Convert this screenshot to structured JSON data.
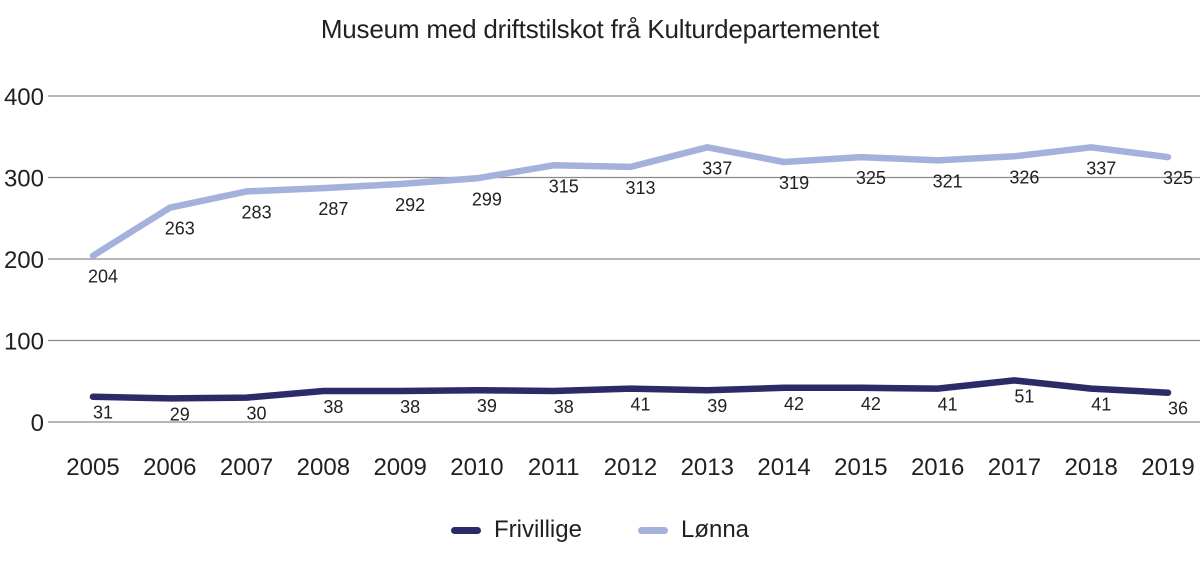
{
  "chart_data": {
    "type": "line",
    "title": "Museum med driftstilskot frå Kulturdepartementet",
    "categories": [
      "2005",
      "2006",
      "2007",
      "2008",
      "2009",
      "2010",
      "2011",
      "2012",
      "2013",
      "2014",
      "2015",
      "2016",
      "2017",
      "2018",
      "2019"
    ],
    "series": [
      {
        "name": "Frivillige",
        "color": "#2d2b67",
        "values": [
          31,
          29,
          30,
          38,
          38,
          39,
          38,
          41,
          39,
          42,
          42,
          41,
          51,
          41,
          36
        ]
      },
      {
        "name": "Lønna",
        "color": "#a4b2db",
        "values": [
          204,
          263,
          283,
          287,
          292,
          299,
          315,
          313,
          337,
          319,
          325,
          321,
          326,
          337,
          325
        ]
      }
    ],
    "xlabel": "",
    "ylabel": "",
    "ylim": [
      0,
      400
    ],
    "yticks": [
      0,
      100,
      200,
      300,
      400
    ],
    "grid": "horizontal",
    "grid_color": "#8c8c8c",
    "text_color": "#231f20",
    "legend_position": "bottom"
  }
}
